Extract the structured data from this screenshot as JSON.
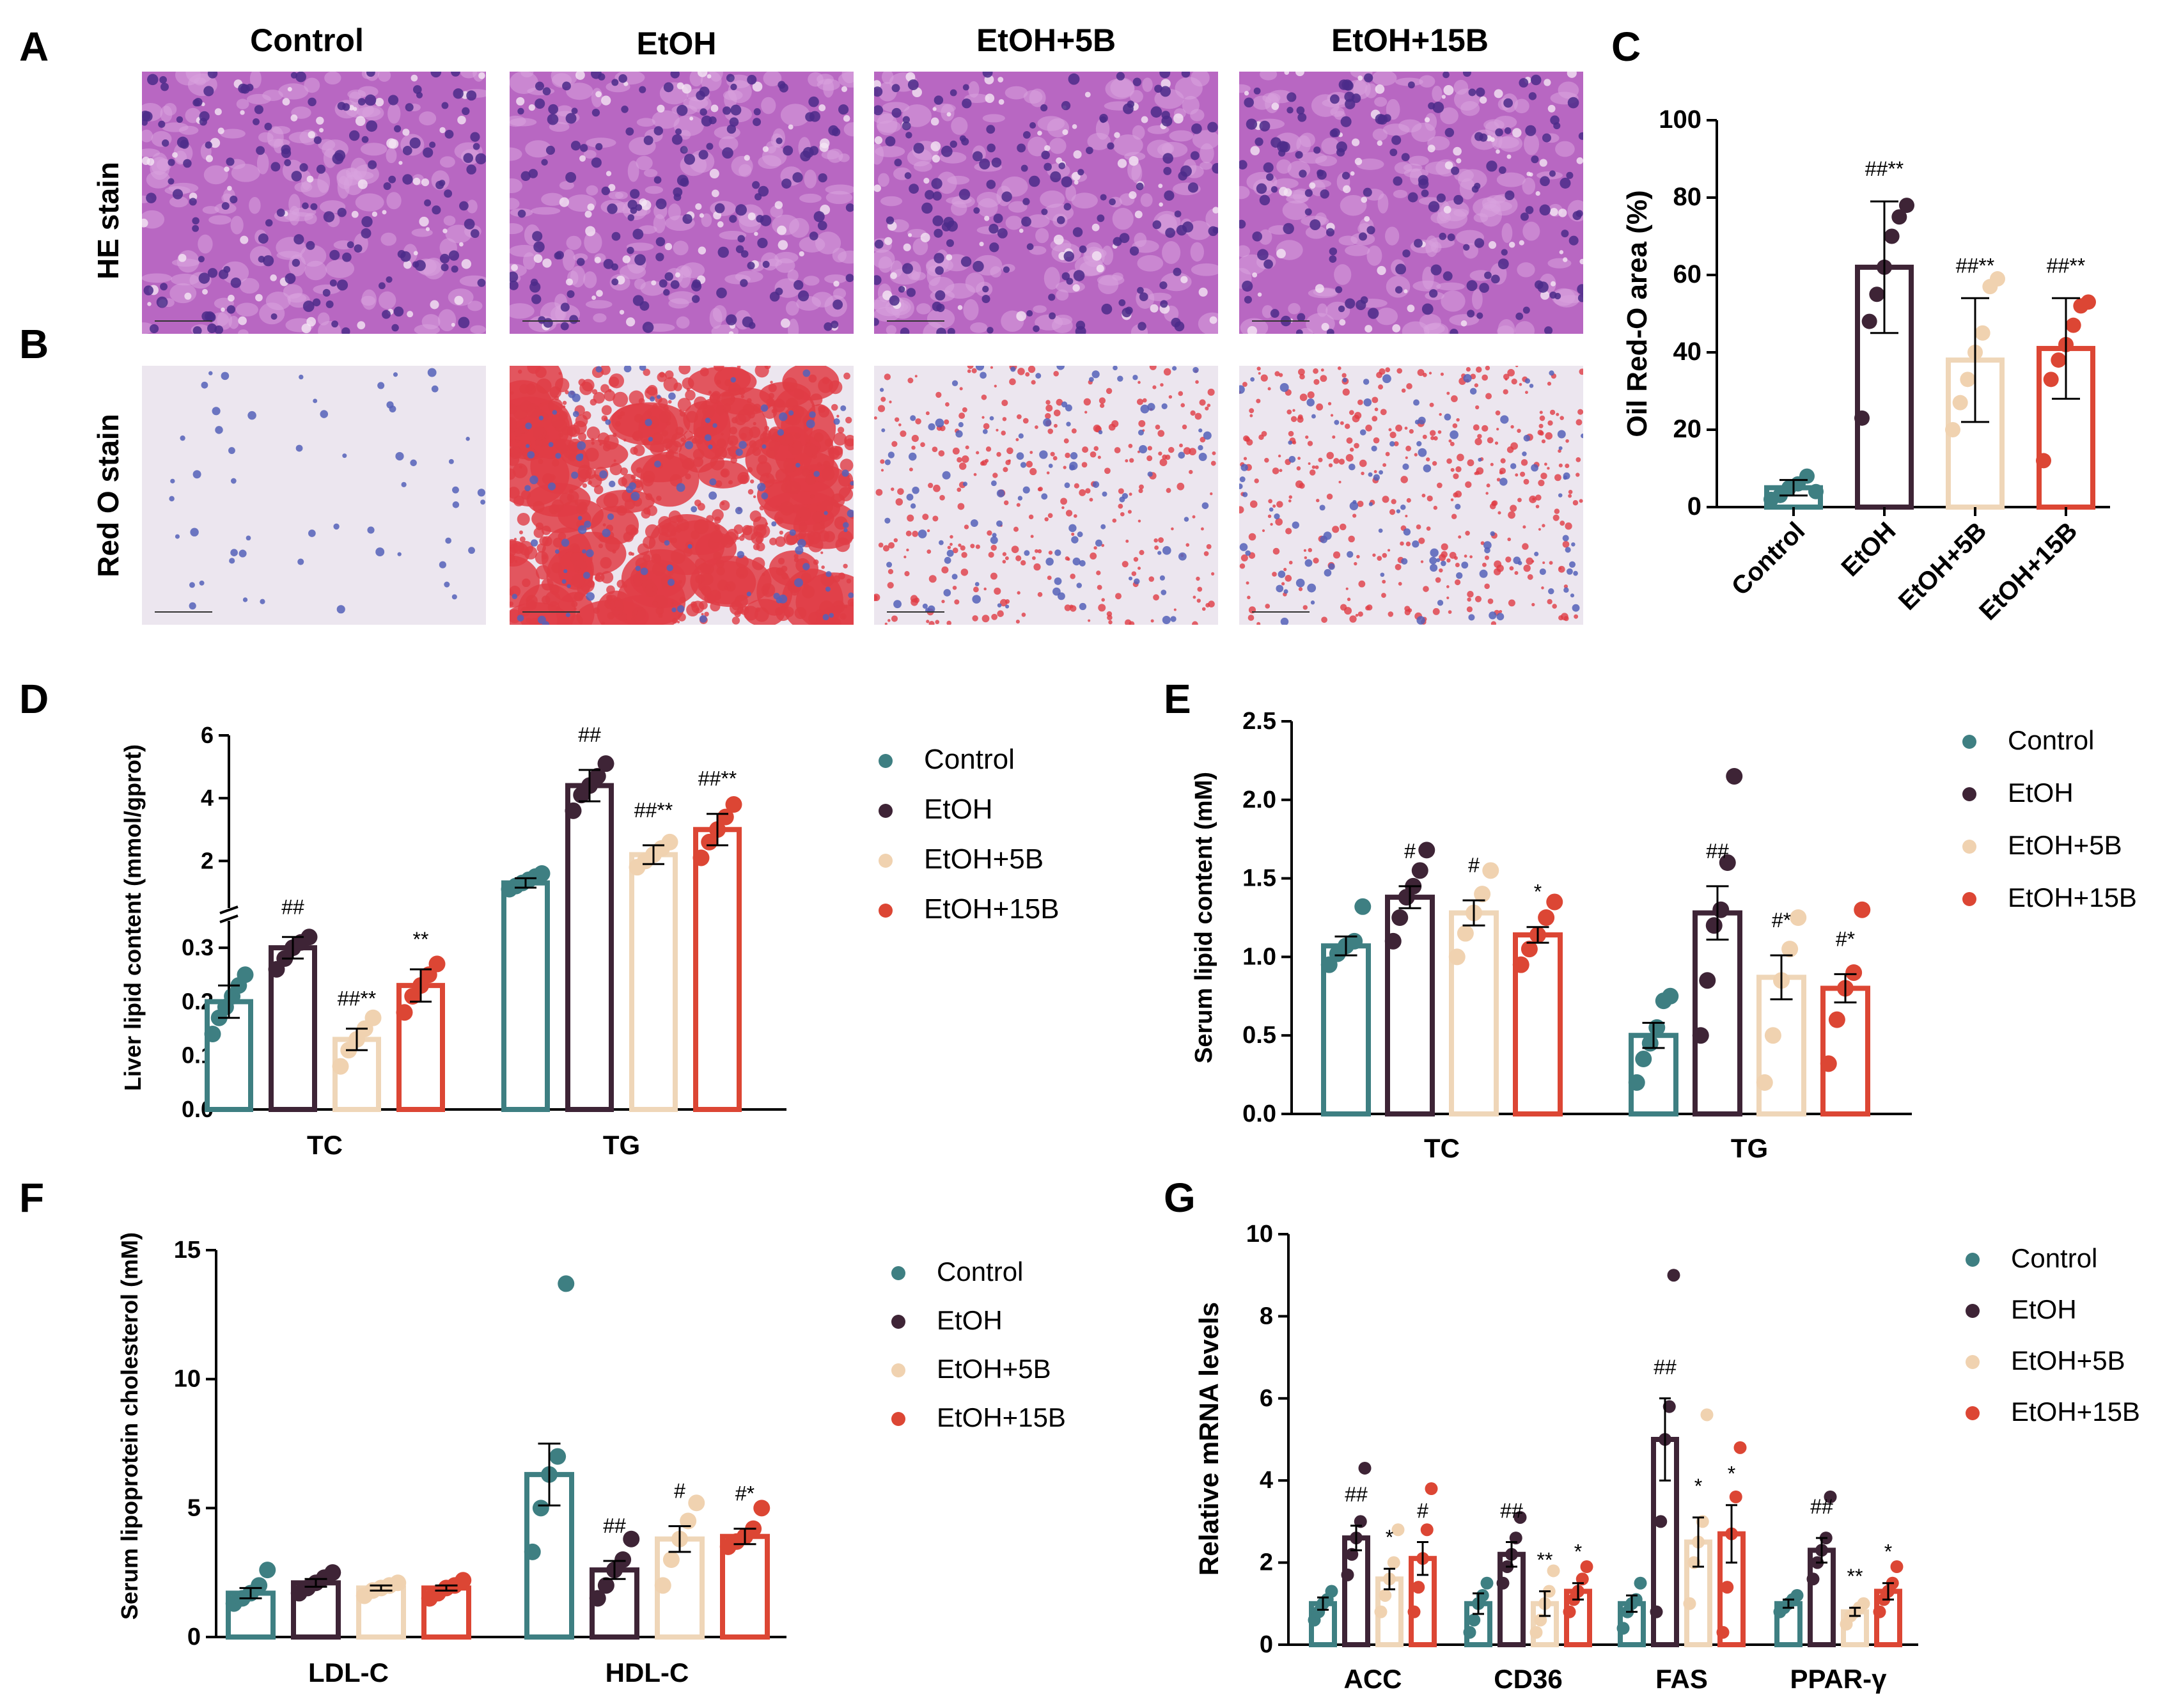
{
  "panels": {
    "A": "A",
    "B": "B",
    "C": "C",
    "D": "D",
    "E": "E",
    "F": "F",
    "G": "G"
  },
  "group_names": [
    "Control",
    "EtOH",
    "EtOH+5B",
    "EtOH+15B"
  ],
  "micro": {
    "row_a_label": "HE stain",
    "row_b_label": "Red O stain"
  },
  "colors": {
    "Control": "#3e7f82",
    "EtOH": "#3e2436",
    "EtOH+5B": "#f2dcc0",
    "EtOH+15B": "#dc4634",
    "he_bg": "#b867c2",
    "he_nucleus": "#4b2c8a",
    "redo_bg": "#ece6ef",
    "redo_nucleus": "#5560b8",
    "redo_lipid": "#e03c45"
  },
  "chart_data": [
    {
      "id": "C",
      "type": "bar",
      "ylabel": "Oil Red-O area (%)",
      "ylim": [
        0,
        100
      ],
      "yticks": [
        0,
        20,
        40,
        60,
        80,
        100
      ],
      "categories": [
        "Control",
        "EtOH",
        "EtOH+5B",
        "EtOH+15B"
      ],
      "values": [
        5,
        62,
        38,
        41
      ],
      "errors": [
        2,
        17,
        16,
        13
      ],
      "points": [
        [
          2,
          3,
          5,
          6,
          8,
          4
        ],
        [
          23,
          48,
          55,
          62,
          70,
          75,
          78
        ],
        [
          20,
          27,
          33,
          40,
          45,
          57,
          59
        ],
        [
          12,
          33,
          38,
          42,
          47,
          52,
          53
        ]
      ],
      "annotations": [
        "",
        "##**",
        "##**",
        "##**"
      ]
    },
    {
      "id": "D",
      "type": "bar",
      "ylabel": "Liver lipid content (mmol/gprot)",
      "broken_axis": true,
      "lower_ylim": [
        0,
        0.35
      ],
      "lower_yticks": [
        0.0,
        0.1,
        0.2,
        0.3
      ],
      "upper_ylim": [
        0.5,
        6
      ],
      "upper_yticks": [
        2,
        4,
        6
      ],
      "categories": [
        "TC",
        "TG"
      ],
      "series": [
        {
          "name": "Control",
          "values": [
            0.2,
            1.3
          ],
          "errors": [
            0.03,
            0.15
          ],
          "points": [
            [
              0.14,
              0.17,
              0.19,
              0.21,
              0.23,
              0.25
            ],
            [
              1.1,
              1.2,
              1.3,
              1.4,
              1.5,
              1.6
            ]
          ],
          "annotations": [
            "",
            ""
          ]
        },
        {
          "name": "EtOH",
          "values": [
            0.3,
            4.4
          ],
          "errors": [
            0.02,
            0.5
          ],
          "points": [
            [
              0.26,
              0.28,
              0.3,
              0.31,
              0.32
            ],
            [
              3.6,
              4.1,
              4.4,
              4.7,
              5.1
            ]
          ],
          "annotations": [
            "##",
            "##"
          ]
        },
        {
          "name": "EtOH+5B",
          "values": [
            0.13,
            2.2
          ],
          "errors": [
            0.02,
            0.3
          ],
          "points": [
            [
              0.08,
              0.11,
              0.13,
              0.15,
              0.17
            ],
            [
              1.8,
              2.0,
              2.2,
              2.4,
              2.6
            ]
          ],
          "annotations": [
            "##**",
            "##**"
          ]
        },
        {
          "name": "EtOH+15B",
          "values": [
            0.23,
            3.0
          ],
          "errors": [
            0.03,
            0.5
          ],
          "points": [
            [
              0.18,
              0.21,
              0.23,
              0.25,
              0.27
            ],
            [
              2.1,
              2.6,
              3.0,
              3.4,
              3.8
            ]
          ],
          "annotations": [
            "**",
            "##**"
          ]
        }
      ]
    },
    {
      "id": "E",
      "type": "bar",
      "ylabel": "Serum lipid content (mM)",
      "ylim": [
        0,
        2.5
      ],
      "yticks": [
        0.0,
        0.5,
        1.0,
        1.5,
        2.0,
        2.5
      ],
      "categories": [
        "TC",
        "TG"
      ],
      "series": [
        {
          "name": "Control",
          "values": [
            1.07,
            0.5
          ],
          "errors": [
            0.06,
            0.08
          ],
          "points": [
            [
              0.95,
              1.02,
              1.07,
              1.1,
              1.32
            ],
            [
              0.2,
              0.35,
              0.45,
              0.55,
              0.72,
              0.75
            ]
          ],
          "annotations": [
            "",
            ""
          ]
        },
        {
          "name": "EtOH",
          "values": [
            1.38,
            1.28
          ],
          "errors": [
            0.07,
            0.17
          ],
          "points": [
            [
              1.1,
              1.25,
              1.38,
              1.45,
              1.55,
              1.68
            ],
            [
              0.5,
              0.85,
              1.2,
              1.3,
              1.6,
              2.15
            ]
          ],
          "annotations": [
            "#",
            "##"
          ]
        },
        {
          "name": "EtOH+5B",
          "values": [
            1.28,
            0.87
          ],
          "errors": [
            0.08,
            0.14
          ],
          "points": [
            [
              1.0,
              1.15,
              1.28,
              1.4,
              1.55
            ],
            [
              0.2,
              0.5,
              0.85,
              1.05,
              1.25
            ]
          ],
          "annotations": [
            "#",
            "#*"
          ]
        },
        {
          "name": "EtOH+15B",
          "values": [
            1.14,
            0.8
          ],
          "errors": [
            0.05,
            0.09
          ],
          "points": [
            [
              0.95,
              1.05,
              1.14,
              1.25,
              1.35
            ],
            [
              0.32,
              0.6,
              0.8,
              0.9,
              1.3
            ]
          ],
          "annotations": [
            "*",
            "#*"
          ]
        }
      ]
    },
    {
      "id": "F",
      "type": "bar",
      "ylabel": "Serum lipoprotein cholesterol (mM)",
      "ylim": [
        0,
        15
      ],
      "yticks": [
        0,
        5,
        10,
        15
      ],
      "categories": [
        "LDL-C",
        "HDL-C"
      ],
      "series": [
        {
          "name": "Control",
          "values": [
            1.7,
            6.3
          ],
          "errors": [
            0.2,
            1.2
          ],
          "points": [
            [
              1.3,
              1.5,
              1.7,
              2.0,
              2.6
            ],
            [
              3.3,
              5.0,
              6.3,
              7.0,
              13.7
            ]
          ],
          "annotations": [
            "",
            ""
          ]
        },
        {
          "name": "EtOH",
          "values": [
            2.1,
            2.6
          ],
          "errors": [
            0.15,
            0.35
          ],
          "points": [
            [
              1.7,
              1.9,
              2.1,
              2.3,
              2.5
            ],
            [
              1.5,
              2.0,
              2.6,
              3.0,
              3.8
            ]
          ],
          "annotations": [
            "",
            "##"
          ]
        },
        {
          "name": "EtOH+5B",
          "values": [
            1.9,
            3.8
          ],
          "errors": [
            0.1,
            0.5
          ],
          "points": [
            [
              1.6,
              1.8,
              1.9,
              2.0,
              2.1
            ],
            [
              2.0,
              3.0,
              3.8,
              4.5,
              5.2
            ]
          ],
          "annotations": [
            "",
            "#"
          ]
        },
        {
          "name": "EtOH+15B",
          "values": [
            1.9,
            3.9
          ],
          "errors": [
            0.1,
            0.3
          ],
          "points": [
            [
              1.5,
              1.7,
              1.9,
              2.0,
              2.2
            ],
            [
              3.5,
              3.7,
              3.9,
              4.2,
              5.0
            ]
          ],
          "annotations": [
            "",
            "#*"
          ]
        }
      ]
    },
    {
      "id": "G",
      "type": "bar",
      "ylabel": "Relative mRNA levels",
      "ylim": [
        0,
        10
      ],
      "yticks": [
        0,
        2,
        4,
        6,
        8,
        10
      ],
      "categories": [
        "ACC",
        "CD36",
        "FAS",
        "PPAR-γ"
      ],
      "series": [
        {
          "name": "Control",
          "values": [
            1.0,
            1.0,
            1.0,
            1.0
          ],
          "errors": [
            0.15,
            0.25,
            0.2,
            0.1
          ],
          "points": [
            [
              0.6,
              0.8,
              1.0,
              1.1,
              1.3
            ],
            [
              0.3,
              0.6,
              1.0,
              1.2,
              1.5
            ],
            [
              0.4,
              0.8,
              1.0,
              1.1,
              1.5
            ],
            [
              0.8,
              0.9,
              1.0,
              1.1,
              1.2
            ]
          ],
          "annotations": [
            "",
            "",
            "",
            ""
          ]
        },
        {
          "name": "EtOH",
          "values": [
            2.6,
            2.2,
            5.0,
            2.3
          ],
          "errors": [
            0.3,
            0.3,
            1.0,
            0.3
          ],
          "points": [
            [
              1.7,
              2.2,
              2.6,
              3.0,
              4.3
            ],
            [
              1.5,
              1.9,
              2.2,
              2.6,
              3.1
            ],
            [
              0.8,
              3.0,
              5.0,
              5.8,
              9.0
            ],
            [
              1.6,
              2.0,
              2.3,
              2.6,
              3.6
            ]
          ],
          "annotations": [
            "##",
            "##",
            "##",
            "##"
          ]
        },
        {
          "name": "EtOH+5B",
          "values": [
            1.6,
            1.0,
            2.5,
            0.8
          ],
          "errors": [
            0.25,
            0.3,
            0.6,
            0.1
          ],
          "points": [
            [
              0.8,
              1.2,
              1.6,
              2.0,
              2.8
            ],
            [
              0.3,
              0.6,
              1.0,
              1.3,
              1.8
            ],
            [
              1.0,
              2.0,
              2.5,
              3.0,
              5.6
            ],
            [
              0.5,
              0.7,
              0.8,
              0.9,
              1.0
            ]
          ],
          "annotations": [
            "*",
            "**",
            "*",
            "**"
          ]
        },
        {
          "name": "EtOH+15B",
          "values": [
            2.1,
            1.3,
            2.7,
            1.3
          ],
          "errors": [
            0.4,
            0.2,
            0.7,
            0.2
          ],
          "points": [
            [
              0.8,
              1.4,
              2.1,
              2.8,
              3.8
            ],
            [
              0.8,
              1.1,
              1.3,
              1.6,
              1.9
            ],
            [
              0.3,
              1.4,
              2.7,
              3.6,
              4.8
            ],
            [
              0.8,
              1.1,
              1.3,
              1.5,
              1.9
            ]
          ],
          "annotations": [
            "#",
            "*",
            "*",
            "*"
          ]
        }
      ]
    }
  ]
}
